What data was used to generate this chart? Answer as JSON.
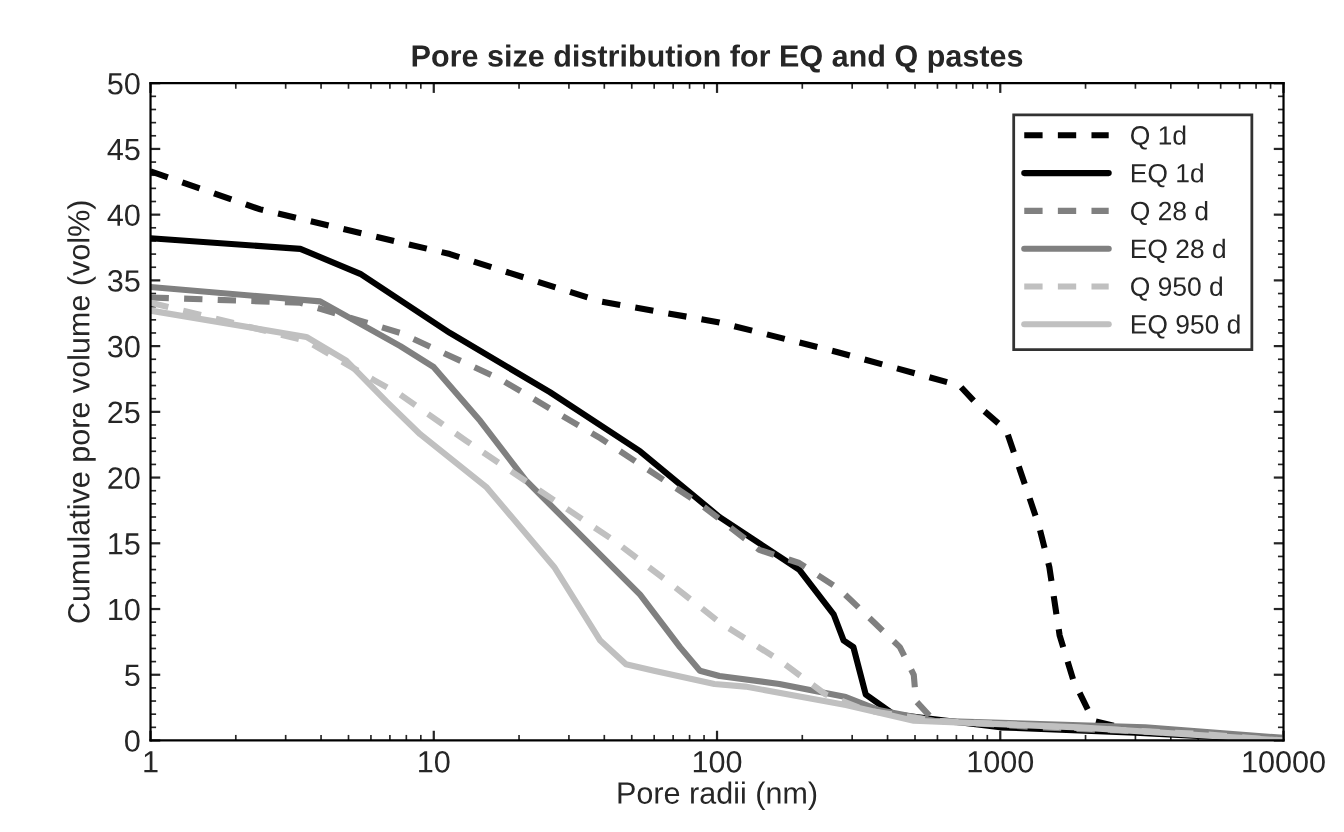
{
  "chart_data": {
    "type": "line",
    "title": "Pore size distribution for EQ and Q pastes",
    "xlabel": "Pore radii (nm)",
    "ylabel": "Cumulative pore volume (vol%)",
    "log": "x",
    "xlim": [
      1,
      10000
    ],
    "xticks": [
      1,
      10,
      100,
      1000,
      10000
    ],
    "ylim": [
      0,
      50
    ],
    "yticks": [
      0,
      5,
      10,
      15,
      20,
      25,
      30,
      35,
      40,
      45,
      50
    ],
    "grid": false,
    "legend": "top right",
    "series": [
      {
        "name": "Q 1d",
        "color": "#000000",
        "line_style": "dashed",
        "x": [
          1,
          2.44,
          11.4,
          38.7,
          102,
          271,
          718,
          842,
          1050,
          1230,
          1370,
          1490,
          1620,
          1810,
          2130,
          2650,
          6270,
          10000
        ],
        "values": [
          43.3,
          40.4,
          37,
          33.4,
          31.8,
          29.5,
          27,
          25.4,
          23.6,
          19.3,
          16.3,
          13.2,
          8,
          4.6,
          1.5,
          1.0,
          0.3,
          0
        ]
      },
      {
        "name": "EQ 1d",
        "color": "#000000",
        "line_style": "solid",
        "x": [
          1,
          3.38,
          5.5,
          11.4,
          25.7,
          53.5,
          102,
          141,
          195,
          258,
          280,
          303,
          335,
          420,
          1000,
          3000,
          10000
        ],
        "values": [
          38.2,
          37.4,
          35.5,
          31,
          26.5,
          22,
          17,
          15,
          13,
          9.6,
          7.6,
          7.1,
          3.5,
          2,
          1.0,
          0.6,
          0
        ]
      },
      {
        "name": "Q 28 d",
        "color": "#808080",
        "line_style": "dashed",
        "x": [
          1,
          3.38,
          7.62,
          17.1,
          38.7,
          87,
          141,
          195,
          271,
          442,
          495,
          504,
          584,
          1370,
          5040,
          10000
        ],
        "values": [
          33.7,
          33.3,
          31,
          27.5,
          23,
          18,
          14.5,
          13.5,
          11.5,
          7.1,
          5,
          3,
          1.5,
          1,
          0.5,
          0
        ]
      },
      {
        "name": "EQ 28 d",
        "color": "#808080",
        "line_style": "solid",
        "x": [
          1,
          3.97,
          7.62,
          10.0,
          14.6,
          21.1,
          34.5,
          53.5,
          74,
          87,
          102,
          166,
          285,
          375,
          584,
          3250,
          10000
        ],
        "values": [
          34.5,
          33.4,
          30,
          28.4,
          24.3,
          19.8,
          15.2,
          11.1,
          7.1,
          5.3,
          4.9,
          4.3,
          3.3,
          2.3,
          1.5,
          1.0,
          0.2
        ]
      },
      {
        "name": "Q 950 d",
        "color": "#c0c0c0",
        "line_style": "dashed",
        "x": [
          1,
          3.55,
          6.17,
          7.62,
          13.0,
          22.6,
          43.3,
          66,
          102,
          166,
          242,
          335,
          584,
          5040,
          10000
        ],
        "values": [
          33.3,
          30.4,
          27.4,
          26.3,
          22.8,
          19.3,
          15.2,
          12.2,
          9,
          6.1,
          3.5,
          2.3,
          1.5,
          0.5,
          0
        ]
      },
      {
        "name": "EQ 950 d",
        "color": "#c0c0c0",
        "line_style": "solid",
        "x": [
          1,
          3.55,
          4.91,
          6.8,
          8.95,
          15.3,
          26.6,
          38.7,
          47.7,
          59.9,
          97.9,
          126,
          285,
          495,
          1900,
          10000
        ],
        "values": [
          32.7,
          30.7,
          28.9,
          25.8,
          23.3,
          19.3,
          13.2,
          7.6,
          5.8,
          5.3,
          4.3,
          4.1,
          2.7,
          1.5,
          1.0,
          0
        ]
      }
    ]
  }
}
